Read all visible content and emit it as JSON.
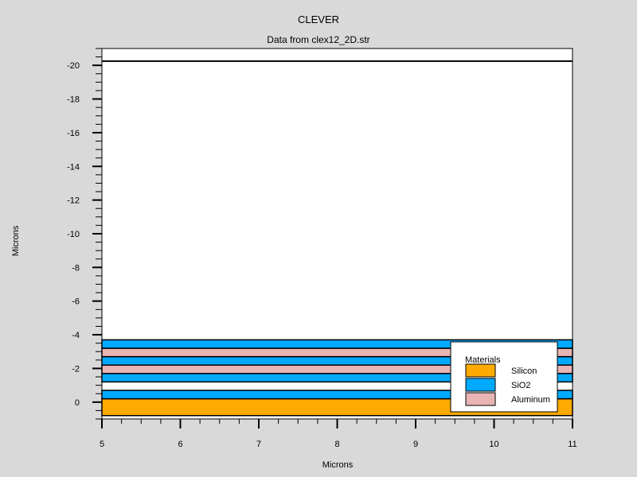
{
  "chart_data": {
    "type": "area",
    "title": "CLEVER",
    "subtitle": "Data from clex12_2D.str",
    "xlabel": "Microns",
    "ylabel": "Microns",
    "xlim": [
      5,
      11
    ],
    "ylim": [
      1,
      -21
    ],
    "x_ticks": [
      "5",
      "6",
      "7",
      "8",
      "9",
      "10",
      "11"
    ],
    "y_ticks": [
      "0",
      "-2",
      "-4",
      "-6",
      "-8",
      "-10",
      "-12",
      "-14",
      "-16",
      "-18",
      "-20"
    ],
    "y_tick_values": [
      0,
      -2,
      -4,
      -6,
      -8,
      -10,
      -12,
      -14,
      -16,
      -18,
      -20
    ],
    "boundary_line_y": -20.25,
    "layers": [
      {
        "material": "Silicon",
        "y_top": -0.2,
        "y_bottom": 0.8
      },
      {
        "material": "SiO2",
        "y_top": -0.7,
        "y_bottom": -0.2
      },
      {
        "material": "SiO2",
        "y_top": -1.7,
        "y_bottom": -1.2
      },
      {
        "material": "Aluminum",
        "y_top": -2.2,
        "y_bottom": -1.7
      },
      {
        "material": "SiO2",
        "y_top": -2.7,
        "y_bottom": -2.2
      },
      {
        "material": "Aluminum",
        "y_top": -3.2,
        "y_bottom": -2.7
      },
      {
        "material": "SiO2",
        "y_top": -3.7,
        "y_bottom": -3.2
      }
    ],
    "legend": {
      "title": "Materials",
      "placement": "bottom-right",
      "items": [
        {
          "label": "Silicon",
          "color": "#ffaa00"
        },
        {
          "label": "SiO2",
          "color": "#00aaff"
        },
        {
          "label": "Aluminum",
          "color": "#e8b4b4"
        }
      ]
    },
    "colors": {
      "Silicon": "#ffaa00",
      "SiO2": "#00aaff",
      "Aluminum": "#e8b4b4",
      "background": "#d9d9d9",
      "plot_background": "#ffffff"
    }
  }
}
